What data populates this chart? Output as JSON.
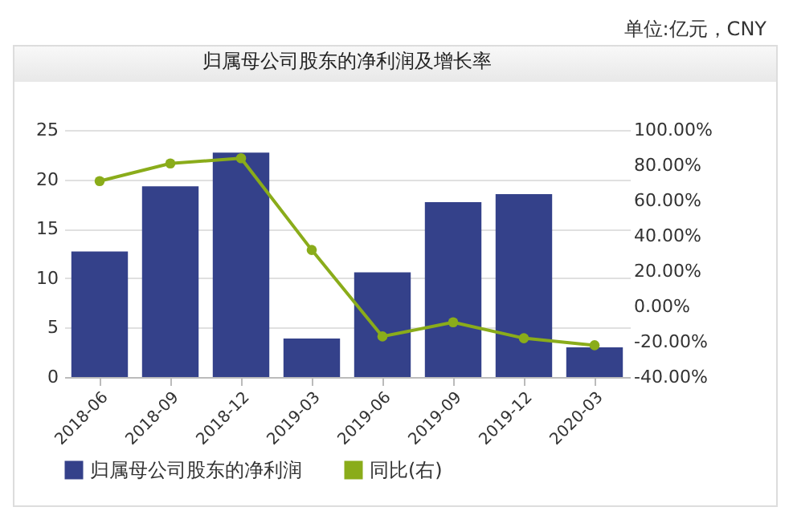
{
  "chart_data": {
    "type": "bar",
    "title": "归属母公司股东的净利润及增长率",
    "annotations": [
      "单位:亿元，CNY"
    ],
    "categories": [
      "2018-06",
      "2018-09",
      "2018-12",
      "2019-03",
      "2019-06",
      "2019-09",
      "2019-12",
      "2020-03"
    ],
    "series": [
      {
        "name": "归属母公司股东的净利润",
        "color": "#34418a",
        "values": [
          12.7,
          19.3,
          22.7,
          3.9,
          10.6,
          17.7,
          18.5,
          3.0
        ]
      },
      {
        "name": "同比(右)",
        "type": "line",
        "axis": "y2",
        "color": "#8aac1a",
        "values": [
          71,
          81,
          84,
          32,
          -17,
          -9,
          -18,
          -22
        ]
      }
    ],
    "ylim": [
      0,
      25
    ],
    "yticks": [
      0,
      5,
      10,
      15,
      20,
      25
    ],
    "y2lim": [
      -40,
      100
    ],
    "y2ticks": [
      {
        "value": -40,
        "label": "-40.00%"
      },
      {
        "value": -20,
        "label": "-20.00%"
      },
      {
        "value": 0,
        "label": "0.00%"
      },
      {
        "value": 20,
        "label": "20.00%"
      },
      {
        "value": 40,
        "label": "40.00%"
      },
      {
        "value": 60,
        "label": "60.00%"
      },
      {
        "value": 80,
        "label": "80.00%"
      },
      {
        "value": 100,
        "label": "100.00%"
      }
    ],
    "grid": "y",
    "legend": "bottom",
    "marker": "circle"
  }
}
